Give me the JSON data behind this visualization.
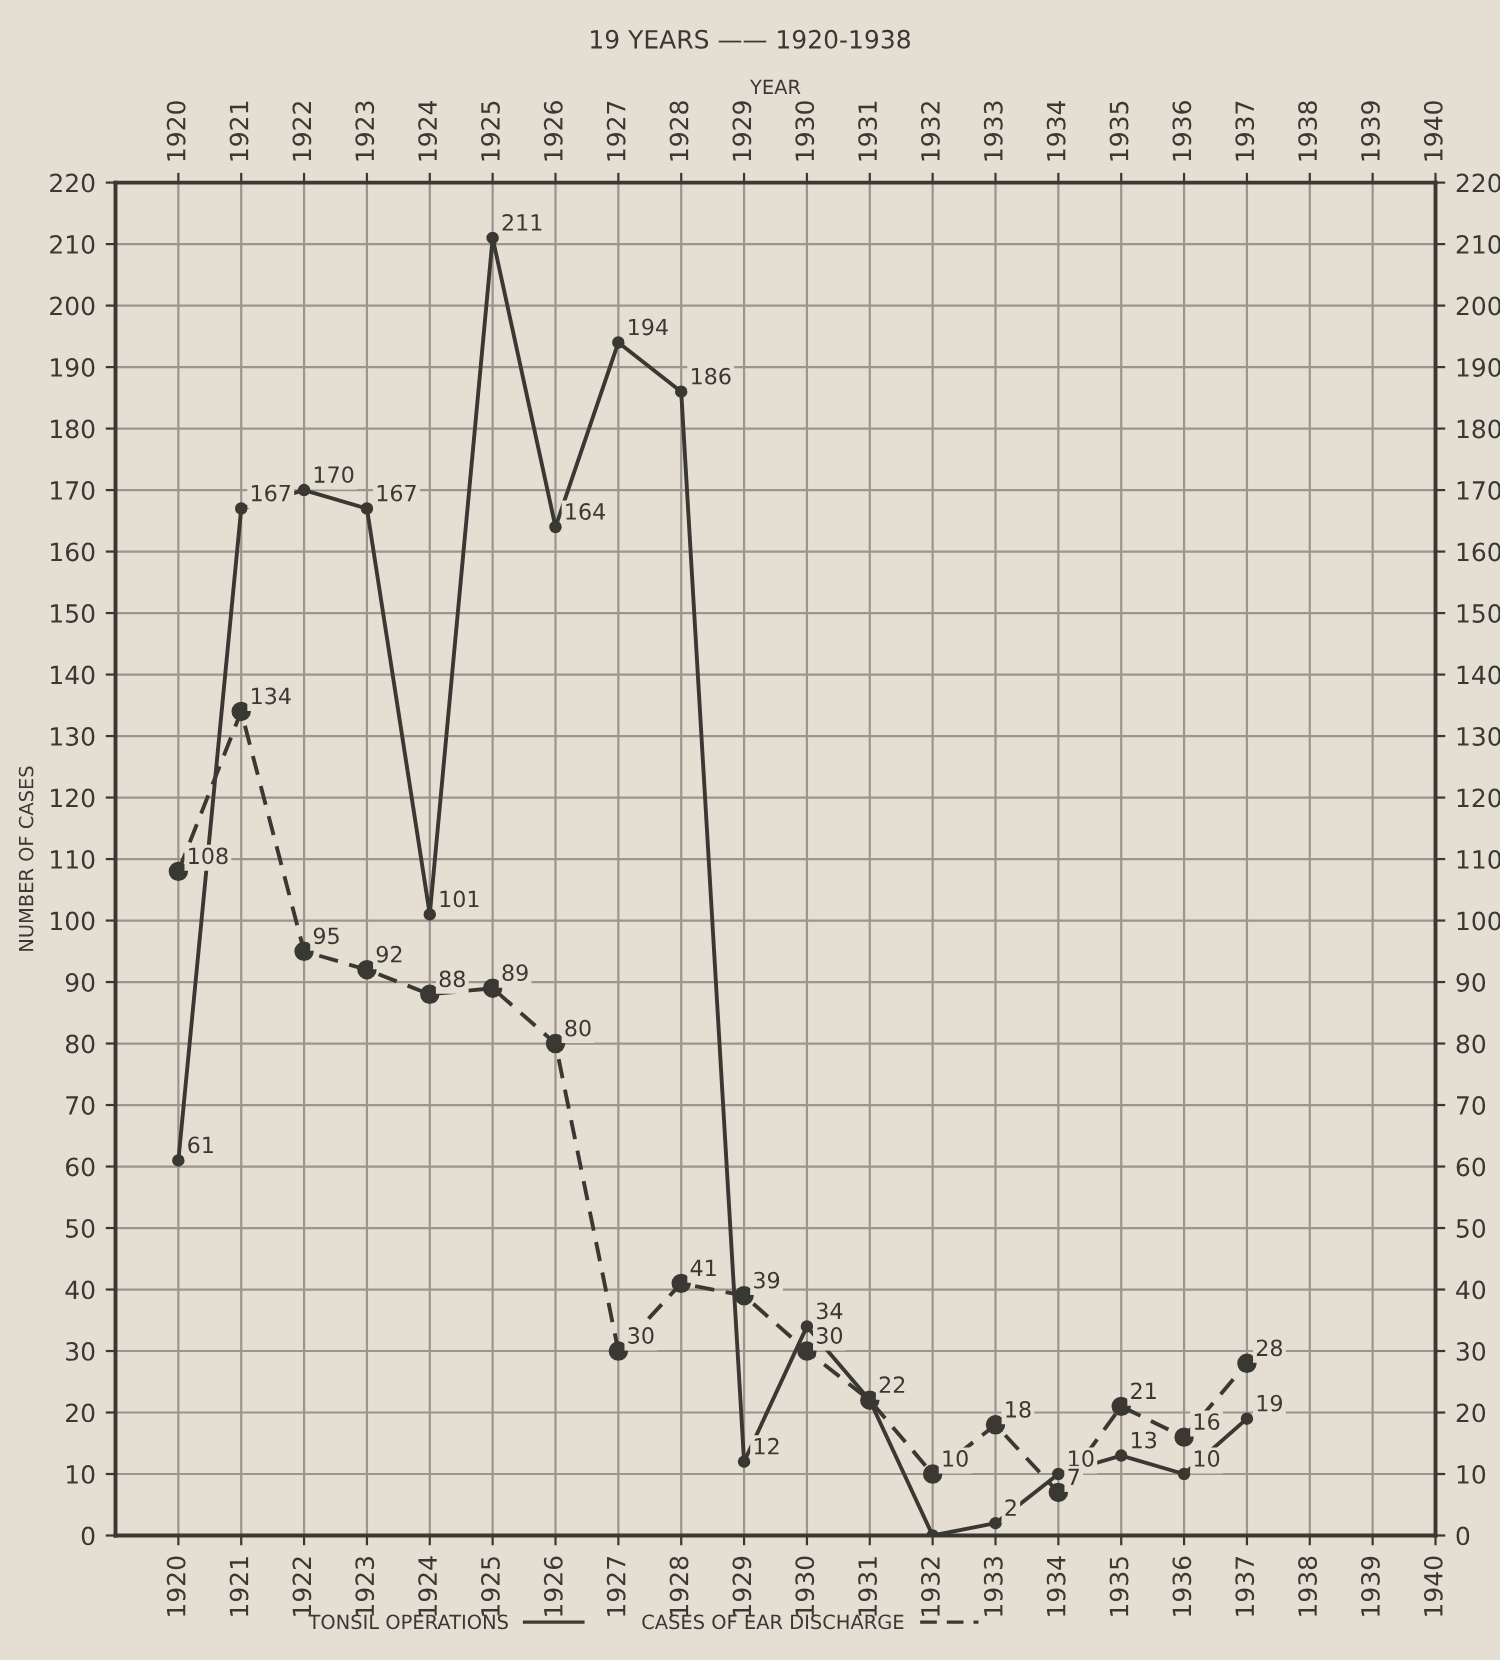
{
  "chart_data": {
    "type": "line",
    "title": "19 YEARS —— 1920-1938",
    "x2label": "YEAR",
    "ylabel": "NUMBER OF CASES",
    "x": [
      1920,
      1921,
      1922,
      1923,
      1924,
      1925,
      1926,
      1927,
      1928,
      1929,
      1930,
      1931,
      1932,
      1933,
      1934,
      1935,
      1936,
      1937
    ],
    "series": [
      {
        "name": "TONSIL OPERATIONS",
        "color": "#3a3833",
        "line_style": "solid",
        "values": [
          61,
          167,
          170,
          167,
          101,
          211,
          164,
          194,
          186,
          12,
          34,
          22,
          0,
          2,
          10,
          13,
          10,
          19
        ],
        "value_labels": [
          "61",
          "167",
          "170",
          "167",
          "101",
          "211",
          "164",
          "194",
          "186",
          "12",
          "34",
          "22",
          null,
          "2",
          "10",
          "13",
          "10",
          "19"
        ]
      },
      {
        "name": "CASES OF EAR DISCHARGE",
        "color": "#3a3833",
        "line_style": "dashed",
        "values": [
          108,
          134,
          95,
          92,
          88,
          89,
          80,
          30,
          41,
          39,
          30,
          22,
          10,
          18,
          7,
          21,
          16,
          28
        ],
        "value_labels": [
          "108",
          "134",
          "95",
          "92",
          "88",
          "89",
          "80",
          "30",
          "41",
          "39",
          "30",
          null,
          "10",
          "18",
          "7",
          "21",
          "16",
          "28"
        ]
      }
    ],
    "marker": "circle",
    "xlim": [
      1919,
      1940
    ],
    "xticks": [
      1920,
      1921,
      1922,
      1923,
      1924,
      1925,
      1926,
      1927,
      1928,
      1929,
      1930,
      1931,
      1932,
      1933,
      1934,
      1935,
      1936,
      1937,
      1938,
      1939,
      1940
    ],
    "x2lim": [
      1919,
      1940
    ],
    "x2ticks": [
      1920,
      1921,
      1922,
      1923,
      1924,
      1925,
      1926,
      1927,
      1928,
      1929,
      1930,
      1931,
      1932,
      1933,
      1934,
      1935,
      1936,
      1937,
      1938,
      1939,
      1940
    ],
    "ylim": [
      0,
      220
    ],
    "yticks": [
      0,
      10,
      20,
      30,
      40,
      50,
      60,
      70,
      80,
      90,
      100,
      110,
      120,
      130,
      140,
      150,
      160,
      170,
      180,
      190,
      200,
      210,
      220
    ],
    "y2lim": [
      0,
      220
    ],
    "y2ticks": [
      0,
      10,
      20,
      30,
      40,
      50,
      60,
      70,
      80,
      90,
      100,
      110,
      120,
      130,
      140,
      150,
      160,
      170,
      180,
      190,
      200,
      210,
      220
    ],
    "grid": true,
    "legend": "bottom"
  }
}
